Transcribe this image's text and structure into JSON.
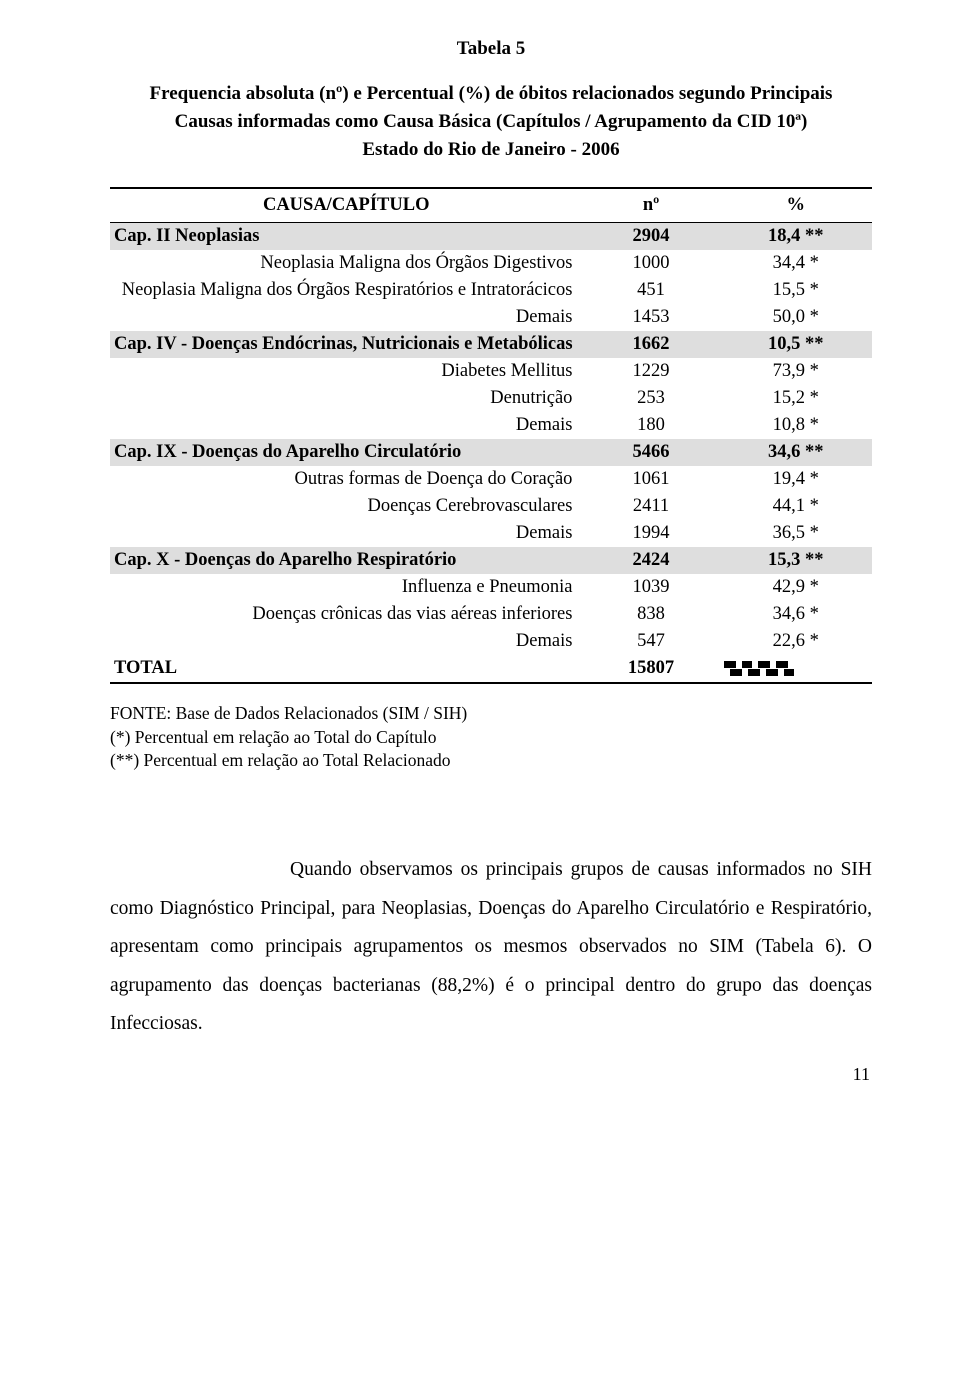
{
  "table": {
    "title": "Tabela 5",
    "subtitle_lines": [
      "Frequencia absoluta (nº) e Percentual (%) de óbitos relacionados segundo Principais",
      "Causas informadas como Causa Básica (Capítulos / Agrupamento da CID 10ª)"
    ],
    "subtitle2": "Estado do Rio de Janeiro - 2006",
    "header": {
      "c1": "CAUSA/CAPÍTULO",
      "c2": "nº",
      "c3": "%"
    },
    "rows": [
      {
        "kind": "cap",
        "c1": "Cap. II Neoplasias",
        "c2": "2904",
        "c3": "18,4 **"
      },
      {
        "kind": "sub",
        "c1": "Neoplasia Maligna dos Órgãos Digestivos",
        "c2": "1000",
        "c3": "34,4 *"
      },
      {
        "kind": "sub",
        "c1": "Neoplasia Maligna dos Órgãos Respiratórios e Intratorácicos",
        "c2": "451",
        "c3": "15,5 *"
      },
      {
        "kind": "sub",
        "c1": "Demais",
        "c2": "1453",
        "c3": "50,0 *"
      },
      {
        "kind": "cap",
        "c1": "Cap. IV - Doenças Endócrinas, Nutricionais e Metabólicas",
        "c2": "1662",
        "c3": "10,5 **"
      },
      {
        "kind": "sub",
        "c1": "Diabetes Mellitus",
        "c2": "1229",
        "c3": "73,9 *"
      },
      {
        "kind": "sub",
        "c1": "Denutrição",
        "c2": "253",
        "c3": "15,2 *"
      },
      {
        "kind": "sub",
        "c1": "Demais",
        "c2": "180",
        "c3": "10,8 *"
      },
      {
        "kind": "cap",
        "c1": "Cap. IX - Doenças do Aparelho Circulatório",
        "c2": "5466",
        "c3": "34,6 **"
      },
      {
        "kind": "sub",
        "c1": "Outras formas de Doença do Coração",
        "c2": "1061",
        "c3": "19,4 *"
      },
      {
        "kind": "sub",
        "c1": "Doenças Cerebrovasculares",
        "c2": "2411",
        "c3": "44,1 *"
      },
      {
        "kind": "sub",
        "c1": "Demais",
        "c2": "1994",
        "c3": "36,5 *"
      },
      {
        "kind": "cap",
        "c1": "Cap. X - Doenças do Aparelho Respiratório",
        "c2": "2424",
        "c3": "15,3 **"
      },
      {
        "kind": "sub",
        "c1": "Influenza e Pneumonia",
        "c2": "1039",
        "c3": "42,9 *"
      },
      {
        "kind": "sub",
        "c1": "Doenças crônicas das vias aéreas inferiores",
        "c2": "838",
        "c3": "34,6 *"
      },
      {
        "kind": "sub",
        "c1": "Demais",
        "c2": "547",
        "c3": "22,6 *"
      }
    ],
    "total": {
      "c1": "TOTAL",
      "c2": "15807"
    },
    "footnotes": [
      "FONTE: Base de Dados Relacionados (SIM / SIH)",
      "(*) Percentual em relação ao Total do Capítulo",
      "(**) Percentual em relação ao Total Relacionado"
    ],
    "colors": {
      "cap_bg": "#dedede",
      "text": "#000000",
      "page_bg": "#ffffff",
      "rule": "#000000"
    },
    "fontsizes": {
      "title": 19,
      "subtitle": 19,
      "table": 18.5,
      "footnote": 17.5,
      "body": 19.5,
      "pagenum": 18
    }
  },
  "body_paragraph": "Quando observamos os principais grupos de causas informados no SIH como Diagnóstico Principal, para Neoplasias, Doenças do Aparelho Circulatório e Respiratório, apresentam como principais agrupamentos os mesmos observados no SIM (Tabela 6). O agrupamento das doenças bacterianas (88,2%) é o principal dentro do grupo das doenças Infecciosas.",
  "page_number": "11"
}
